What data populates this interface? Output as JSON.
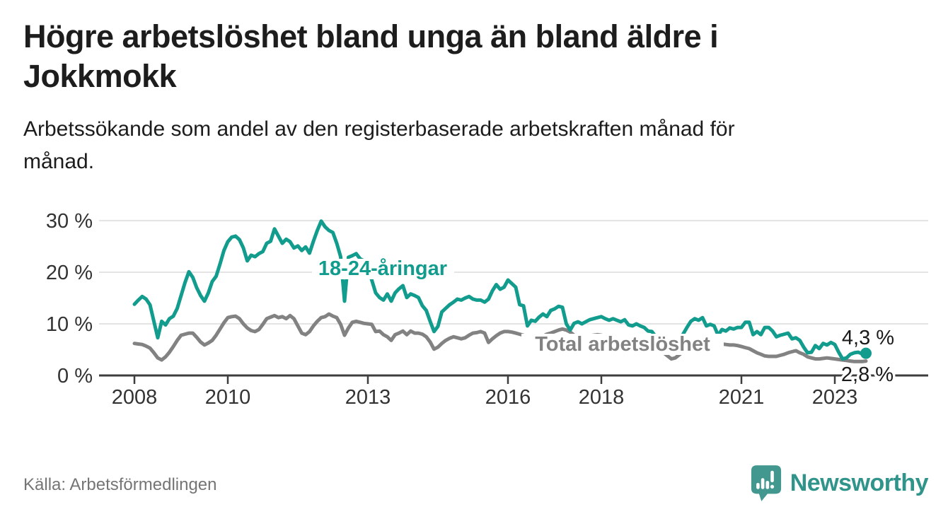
{
  "title": "Högre arbetslöshet bland unga än bland äldre i\nJokkmokk",
  "subtitle": "Arbetssökande som andel av den registerbaserade arbetskraften månad för\nmånad.",
  "source": "Källa: Arbetsförmedlingen",
  "brand": {
    "name": "Newsworthy",
    "color": "#31948b",
    "icon": "speech-bubble-bar-chart",
    "icon_color": "#42988f"
  },
  "chart_data": {
    "type": "line",
    "title": "Arbetssökande som andel av den registerbaserade arbetskraften månad för månad",
    "x_start": {
      "year": 2008,
      "month": 1
    },
    "x_end": {
      "year": 2023,
      "month": 9
    },
    "x_ticks": [
      2008,
      2010,
      2013,
      2016,
      2018,
      2021,
      2023
    ],
    "x_tick_labels": [
      "2008",
      "2010",
      "2013",
      "2016",
      "2018",
      "2021",
      "2023"
    ],
    "y_ticks": [
      0,
      10,
      20,
      30
    ],
    "y_tick_labels": [
      "0 %",
      "10 %",
      "20 %",
      "30 %"
    ],
    "ylim": [
      0,
      31
    ],
    "grid": true,
    "grid_color": "#dcdcdc",
    "axis_color": "#3d3d3d",
    "tick_label_color": "#333333",
    "annotation_color": "#1a1a1a",
    "series": [
      {
        "name": "18-24-åringar",
        "label_text": "18-24-åringar",
        "end_label": "4,3 %",
        "color": "#129c8e",
        "values": [
          13.8,
          14.6,
          15.3,
          14.8,
          13.7,
          10.5,
          7.3,
          10.5,
          9.8,
          11.0,
          11.5,
          13.0,
          15.5,
          18.0,
          20.1,
          19.0,
          17.0,
          15.5,
          14.4,
          16.0,
          18.2,
          19.2,
          21.6,
          24.2,
          25.9,
          26.8,
          27.0,
          26.3,
          24.7,
          22.2,
          23.3,
          23.0,
          23.6,
          24.0,
          25.6,
          26.0,
          28.4,
          27.0,
          25.6,
          26.4,
          25.9,
          24.7,
          25.1,
          24.2,
          24.9,
          23.7,
          26.0,
          28.1,
          29.9,
          28.8,
          28.1,
          27.7,
          25.6,
          23.0,
          14.4,
          22.9,
          23.2,
          23.6,
          22.6,
          22.2,
          20.5,
          18.5,
          16.0,
          15.1,
          14.6,
          15.8,
          14.4,
          16.0,
          16.8,
          17.4,
          15.1,
          15.8,
          15.5,
          15.1,
          13.5,
          12.6,
          10.5,
          8.5,
          9.5,
          12.3,
          13.0,
          13.7,
          14.2,
          14.8,
          14.6,
          15.0,
          15.3,
          14.8,
          14.6,
          14.6,
          14.2,
          14.8,
          16.4,
          17.6,
          16.7,
          17.1,
          18.5,
          17.8,
          17.1,
          13.7,
          13.5,
          9.6,
          10.7,
          10.5,
          11.3,
          11.9,
          11.4,
          12.6,
          12.9,
          13.4,
          13.2,
          10.0,
          8.8,
          10.1,
          10.4,
          10.0,
          10.4,
          10.8,
          11.0,
          11.2,
          11.4,
          11.0,
          10.7,
          11.0,
          10.7,
          10.4,
          10.8,
          9.8,
          9.6,
          10.0,
          9.6,
          9.3,
          8.6,
          8.5,
          7.5,
          7.0,
          6.5,
          5.8,
          5.5,
          6.2,
          7.0,
          8.0,
          9.3,
          10.5,
          11.0,
          10.7,
          11.2,
          9.6,
          9.9,
          9.6,
          7.8,
          8.9,
          8.6,
          9.2,
          9.0,
          9.3,
          9.3,
          10.3,
          10.3,
          7.9,
          8.5,
          7.9,
          9.3,
          9.3,
          8.6,
          7.5,
          7.8,
          8.0,
          8.2,
          7.1,
          7.3,
          6.8,
          5.5,
          4.4,
          4.5,
          5.8,
          5.2,
          6.2,
          5.9,
          6.4,
          6.0,
          4.5,
          3.2,
          3.4,
          4.1,
          4.4,
          4.5,
          4.2,
          4.3
        ]
      },
      {
        "name": "Total arbetslöshet",
        "label_text": "Total arbetslöshet",
        "end_label": "2,8 %",
        "color": "#828282",
        "values": [
          6.2,
          6.1,
          6.0,
          5.7,
          5.3,
          4.4,
          3.4,
          3.0,
          3.6,
          4.5,
          5.6,
          6.8,
          7.8,
          8.0,
          8.2,
          8.2,
          7.4,
          6.5,
          5.9,
          6.3,
          6.8,
          7.8,
          9.0,
          10.2,
          11.2,
          11.4,
          11.5,
          11.0,
          10.0,
          9.2,
          8.7,
          8.5,
          8.9,
          9.9,
          11.0,
          11.3,
          11.6,
          11.2,
          11.4,
          11.0,
          11.6,
          11.0,
          9.6,
          8.2,
          7.9,
          8.5,
          9.6,
          10.5,
          11.2,
          11.4,
          11.9,
          11.5,
          11.2,
          9.9,
          7.8,
          9.2,
          10.3,
          10.5,
          10.3,
          10.1,
          10.0,
          9.9,
          8.5,
          8.6,
          7.9,
          7.5,
          6.8,
          7.9,
          8.2,
          8.6,
          7.9,
          8.6,
          8.2,
          8.2,
          8.0,
          7.5,
          6.5,
          5.1,
          5.5,
          6.2,
          6.8,
          7.2,
          7.5,
          7.3,
          7.1,
          7.3,
          7.8,
          8.2,
          8.3,
          8.5,
          8.2,
          6.4,
          7.1,
          7.7,
          8.2,
          8.5,
          8.5,
          8.4,
          8.2,
          8.0,
          7.8,
          7.2,
          6.5,
          6.8,
          7.2,
          7.6,
          8.0,
          8.2,
          8.5,
          8.8,
          9.0,
          8.8,
          8.4,
          7.8,
          7.2,
          7.3,
          7.5,
          7.7,
          7.8,
          7.9,
          7.8,
          7.6,
          7.4,
          7.2,
          7.0,
          6.5,
          6.0,
          6.2,
          6.4,
          6.3,
          6.2,
          6.0,
          5.8,
          5.5,
          5.2,
          4.8,
          4.4,
          3.8,
          3.2,
          3.4,
          4.0,
          4.6,
          5.2,
          5.8,
          5.9,
          6.0,
          6.2,
          6.4,
          6.5,
          6.4,
          6.2,
          6.1,
          6.0,
          5.9,
          5.9,
          5.8,
          5.6,
          5.4,
          5.2,
          4.8,
          4.4,
          4.1,
          3.8,
          3.7,
          3.7,
          3.7,
          3.9,
          4.1,
          4.4,
          4.6,
          4.8,
          4.4,
          4.1,
          3.6,
          3.4,
          3.2,
          3.2,
          3.3,
          3.4,
          3.3,
          3.2,
          3.1,
          3.0,
          2.9,
          2.8,
          2.7,
          2.7,
          2.7,
          2.8
        ]
      }
    ]
  }
}
